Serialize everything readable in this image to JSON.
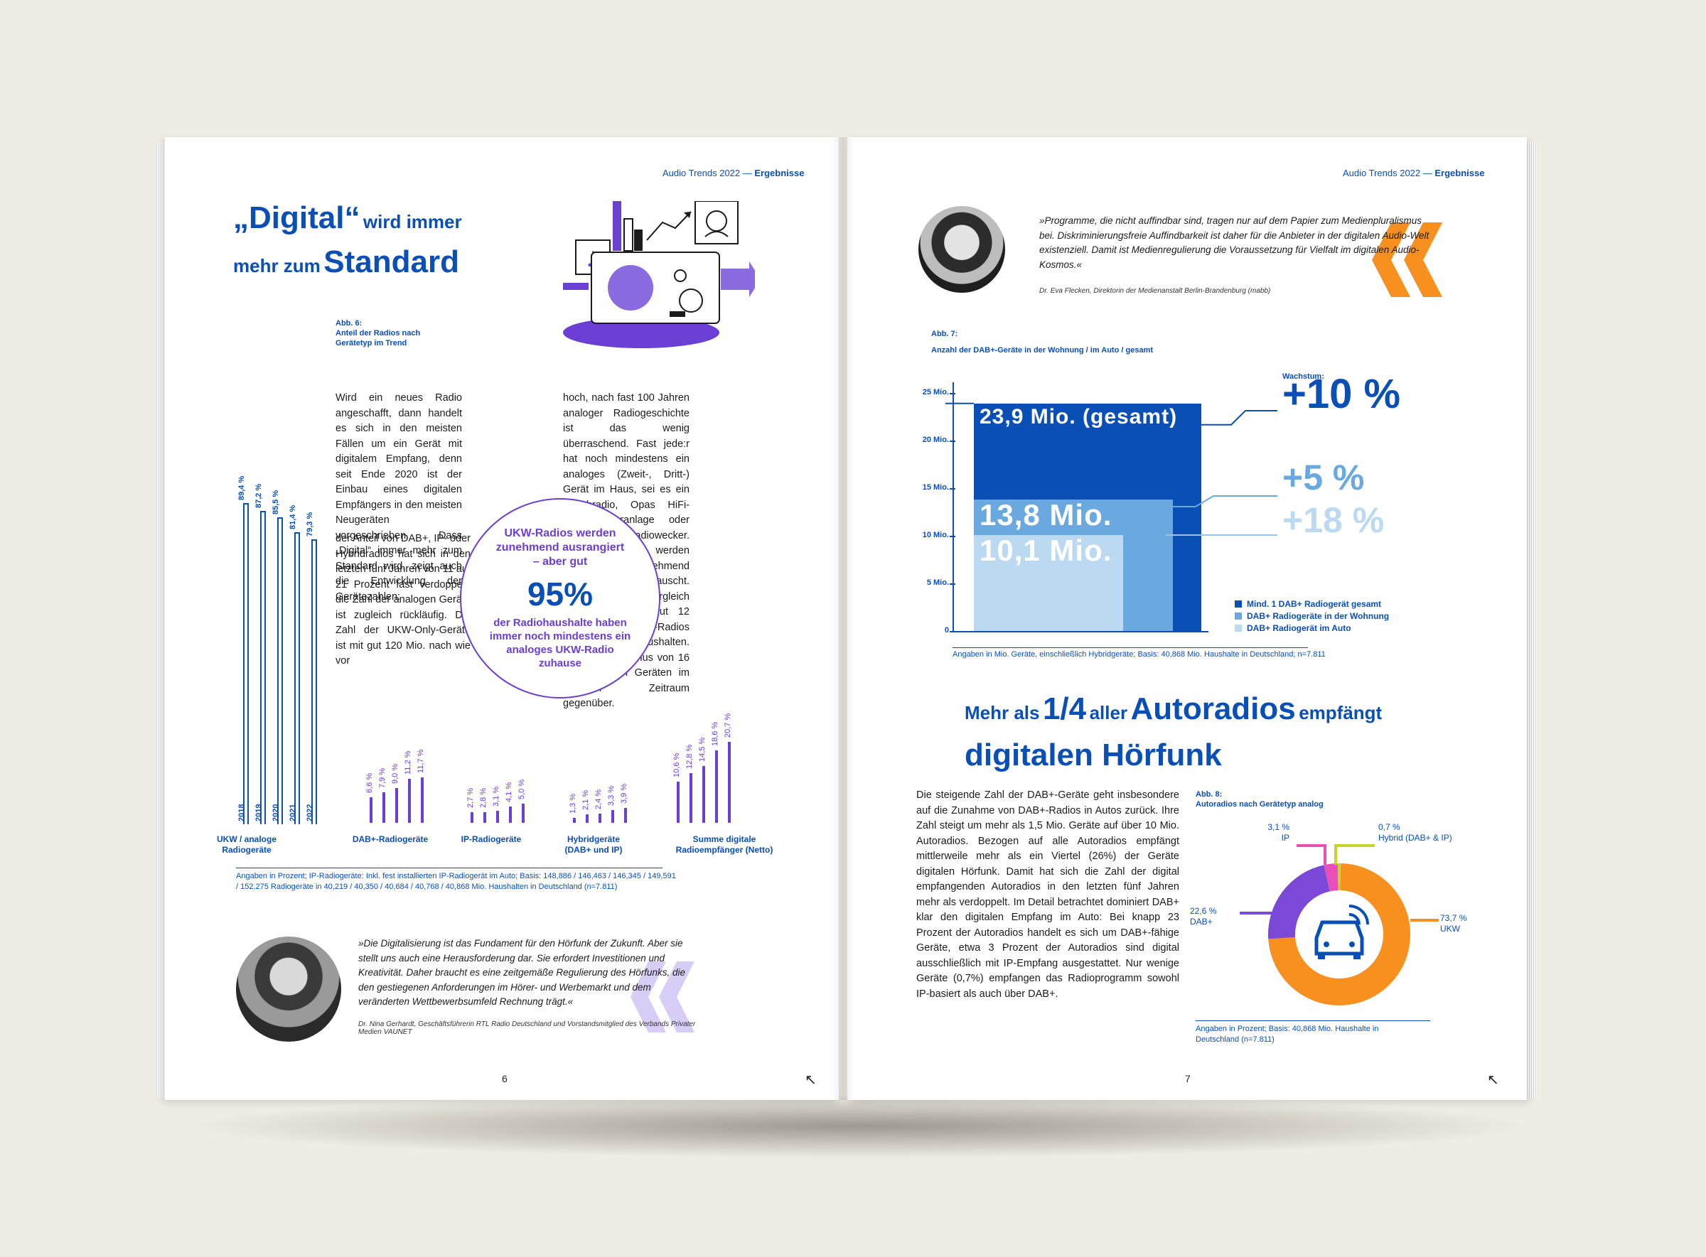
{
  "left": {
    "header": {
      "title": "Audio Trends 2022 — ",
      "section": "Ergebnisse"
    },
    "headline": {
      "part1": "„Digital“",
      "part2": "wird immer",
      "part3": "mehr zum",
      "part4": "Standard"
    },
    "fig6": {
      "label": "Abb. 6:",
      "title": "Anteil der Radios nach Gerätetyp im Trend"
    },
    "body_col1": "Wird ein neues Radio angeschafft, dann handelt es sich in den meisten Fällen um ein Gerät mit digitalem Empfang, denn seit Ende 2020 ist der Einbau eines digitalen Empfängers in den meisten Neugeräten vorgeschrieben. Dass „Digital“ immer mehr zum Standard wird, zeigt auch die Entwicklung der Gerätezahlen:",
    "body_col1b": "der Anteil von DAB+, IP- oder Hybridradios hat sich in den letzten fünf Jahren von 11 auf 21 Prozent fast verdoppelt, die Zahl der analogen Geräte ist zugleich rückläufig. Die Zahl der UKW-Only-Geräte ist mit gut 120 Mio. nach wie vor",
    "body_col2": "hoch, nach fast 100 Jahren analoger Radiogeschichte ist das wenig überraschend. Fast jede:r hat noch mindestens ein analoges (Zweit-, Dritt-) Gerät im Haus, sei es ein Duschradio, Opas HiFi-Wohnzimmeranlage oder der UKW-Radiowecker. Analoge Geräte werden aber zunehmend ausrangiert oder getauscht. Heute stehen im Vergleich zu 2018 schon gut 12 Millionen UKW-Radios weniger in den Haushalten. Dem steht ein Plus von 16 Mio. digitalen Geräten im gleichen Zeitraum gegenüber.",
    "circle": {
      "title": "UKW-Radios werden zunehmend ausrangiert – aber gut",
      "value": "95%",
      "text": "der Radiohaushalte haben immer noch mindestens ein analoges UKW-Radio zuhause"
    },
    "footnote": "Angaben in Prozent;  IP-Radiogeräte: Inkl. fest installierten IP-Radiogerät im Auto; Basis: 148,886 / 146,463 / 146,345 / 149,591 / 152,275 Radiogeräte in 40,219 / 40,350 / 40,684 / 40,768 / 40,868 Mio. Haushalten in Deutschland (n=7.811)",
    "quote": "»Die Digitalisierung ist das Fundament für den Hörfunk der Zukunft. Aber sie stellt uns auch eine Herausforderung dar. Sie erfordert Investitionen und Kreativität. Daher braucht es eine zeitgemäße Regulierung des Hörfunks, die den gestiegenen Anforderungen im Hörer- und Werbemarkt und dem veränderten Wettbewerbsumfeld Rechnung trägt.«",
    "quote_src": "Dr. Nina Gerhardt, Geschäftsführerin RTL Radio Deutschland und Vorstandsmitglied des Verbands Privater Medien VAUNET",
    "page_number": "6",
    "arrow_icon": "↖"
  },
  "chart_data": [
    {
      "type": "bar",
      "title": "Anteil der Radios nach Gerätetyp im Trend",
      "categories": [
        "UKW / analoge Radiogeräte",
        "DAB+-Radiogeräte",
        "IP-Radiogeräte",
        "Hybridgeräte (DAB+ und IP)",
        "Summe digitale Radioempfänger (Netto)"
      ],
      "years": [
        "2018",
        "2019",
        "2020",
        "2021",
        "2022"
      ],
      "series": [
        {
          "name": "UKW / analoge Radiogeräte",
          "values": [
            89.4,
            87.2,
            85.5,
            81.4,
            79.3
          ],
          "labels": [
            "89,4 %",
            "87,2 %",
            "85,5 %",
            "81,4 %",
            "79,3 %"
          ]
        },
        {
          "name": "DAB+-Radiogeräte",
          "values": [
            6.6,
            7.9,
            9.0,
            11.2,
            11.7
          ],
          "labels": [
            "6,6 %",
            "7,9 %",
            "9,0 %",
            "11,2 %",
            "11,7 %"
          ]
        },
        {
          "name": "IP-Radiogeräte",
          "values": [
            2.7,
            2.8,
            3.1,
            4.1,
            5.0
          ],
          "labels": [
            "2,7 %",
            "2,8 %",
            "3,1 %",
            "4,1 %",
            "5,0 %"
          ]
        },
        {
          "name": "Hybridgeräte (DAB+ und IP)",
          "values": [
            1.3,
            2.1,
            2.4,
            3.3,
            3.9
          ],
          "labels": [
            "1,3 %",
            "2,1 %",
            "2,4 %",
            "3,3 %",
            "3,9 %"
          ]
        },
        {
          "name": "Summe digitale Radioempfänger (Netto)",
          "values": [
            10.6,
            12.8,
            14.5,
            18.6,
            20.7
          ],
          "labels": [
            "10,6 %",
            "12,8 %",
            "14,5 %",
            "18,6 %",
            "20,7 %"
          ]
        }
      ],
      "group_labels": [
        "UKW / analoge Radiogeräte",
        "DAB+-Radiogeräte",
        "IP-Radiogeräte",
        "Hybridgeräte (DAB+ und IP)",
        "Summe digitale Radioempfänger (Netto)"
      ]
    },
    {
      "type": "area",
      "label": "Abb. 7:",
      "title": "Anzahl der DAB+-Geräte in der Wohnung / im Auto / gesamt",
      "yticks": [
        "25 Mio.",
        "20 Mio.",
        "15 Mio.",
        "10 Mio.",
        "5 Mio.",
        "0"
      ],
      "ylim": [
        0,
        25
      ],
      "series": [
        {
          "name": "Mind. 1 DAB+ Radiogerät gesamt",
          "value": 23.9,
          "label": "23,9 Mio. (gesamt)",
          "growth": "+10 %",
          "color": "#0a4fb5"
        },
        {
          "name": "DAB+ Radiogeräte in der Wohnung",
          "value": 13.8,
          "label": "13,8 Mio.",
          "growth": "+5 %",
          "color": "#6aa9e0"
        },
        {
          "name": "DAB+ Radiogerät im Auto",
          "value": 10.1,
          "label": "10,1 Mio.",
          "growth": "+18 %",
          "color": "#bcd9f2"
        }
      ],
      "growth_title": "Wachstum:",
      "footnote": "Angaben in Mio. Geräte, einschließlich Hybridgeräte; Basis: 40,868 Mio. Haushalte in Deutschland; n=7.811"
    },
    {
      "type": "pie",
      "label": "Abb. 8:",
      "title": "Autoradios nach Gerätetyp analog",
      "slices": [
        {
          "name": "UKW",
          "value": 73.7,
          "label": "73,7 %",
          "color": "#f7901e"
        },
        {
          "name": "DAB+",
          "value": 22.6,
          "label": "22,6 %",
          "color": "#7b48d8"
        },
        {
          "name": "IP",
          "value": 3.1,
          "label": "3,1 %",
          "color": "#e94fb8"
        },
        {
          "name": "Hybrid (DAB+ & IP)",
          "value": 0.7,
          "label": "0,7 %",
          "color": "#c9d32a"
        }
      ],
      "footnote": "Angaben in Prozent; Basis: 40,868 Mio. Haushalte in Deutschland (n=7.811)"
    }
  ],
  "right": {
    "header": {
      "title": "Audio Trends 2022 — ",
      "section": "Ergebnisse"
    },
    "quote": "»Programme, die nicht auffindbar sind, tragen nur auf dem Papier zum Medienpluralismus bei. Diskriminierungsfreie Auffindbarkeit ist daher für die Anbieter in der digitalen Audio-Welt existenziell. Damit ist Medienregulierung die Voraussetzung für Vielfalt im digitalen Audio-Kosmos.«",
    "quote_src": "Dr. Eva Flecken, Direktorin der Medienanstalt Berlin-Brandenburg (mabb)",
    "headline": {
      "a": "Mehr als",
      "b": "1/4",
      "c": "aller",
      "d": "Autoradios",
      "e": "empfängt",
      "f": "digitalen Hörfunk"
    },
    "body": "Die steigende Zahl der DAB+-Geräte geht insbesondere auf die Zunahme von DAB+-Radios in Autos zurück. Ihre Zahl steigt um mehr als 1,5 Mio. Geräte auf über 10 Mio. Autoradios. Bezogen auf alle Autoradios empfängt mittlerweile mehr als ein Viertel (26%) der Geräte digitalen Hörfunk. Damit hat sich die Zahl der digital empfangenden Autoradios in den letzten fünf Jahren mehr als verdoppelt. Im Detail betrachtet dominiert DAB+ klar den digitalen Empfang im Auto: Bei knapp 23 Prozent der Autoradios handelt es sich um DAB+-fähige Geräte, etwa 3 Prozent der Autoradios sind digital ausschließlich mit IP-Empfang ausgestattet. Nur wenige Geräte (0,7%) empfangen das Radioprogramm sowohl IP-basiert als auch über DAB+.",
    "page_number": "7",
    "arrow_icon": "↖"
  },
  "colors": {
    "blue": "#0a4fb5",
    "purple": "#6b3fd4",
    "orange": "#f7901e",
    "lightblue": "#6aa9e0",
    "paleblue": "#bcd9f2",
    "lavender": "#d8cdf6"
  }
}
